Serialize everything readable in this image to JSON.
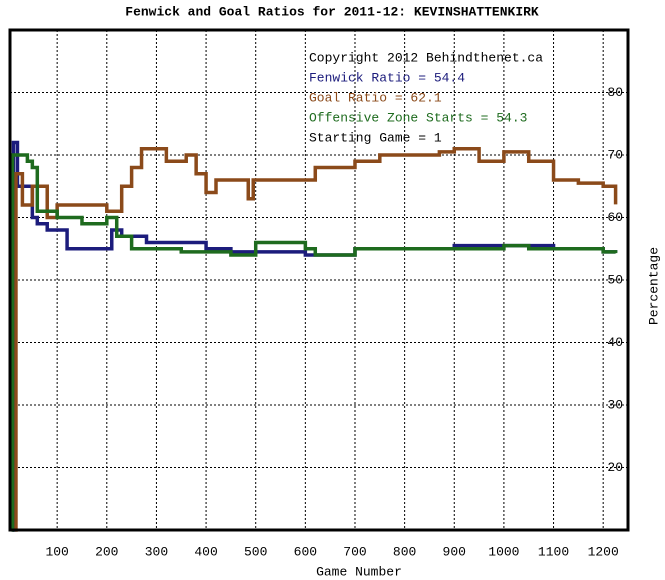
{
  "chart_data": {
    "type": "line",
    "title": "Fenwick and Goal Ratios for 2011-12: KEVINSHATTENKIRK",
    "xlabel": "Game Number",
    "ylabel": "Percentage",
    "annotations": [
      "Copyright 2012 Behindthenet.ca",
      "Starting Game = 1"
    ],
    "xlim": [
      5,
      1250
    ],
    "ylim": [
      10,
      90
    ],
    "xticks": [
      100,
      200,
      300,
      400,
      500,
      600,
      700,
      800,
      900,
      1000,
      1100,
      1200
    ],
    "yticks": [
      20,
      30,
      40,
      50,
      60,
      70,
      80
    ],
    "grid": true,
    "step": "post",
    "series": [
      {
        "name": "Fenwick Ratio = 54.4",
        "color": "#1c1c7c",
        "x": [
          10,
          12,
          20,
          50,
          60,
          80,
          120,
          210,
          230,
          280,
          400,
          450,
          550,
          600,
          700,
          900,
          1100,
          1200,
          1225
        ],
        "values": [
          10,
          72,
          65,
          60,
          59,
          58,
          55,
          58,
          57,
          56,
          55,
          54.5,
          54.5,
          54,
          55,
          55.5,
          55,
          54.5,
          54.4
        ]
      },
      {
        "name": "Goal Ratio = 62.1",
        "color": "#8b4a1a",
        "x": [
          15,
          17,
          30,
          50,
          80,
          100,
          200,
          230,
          250,
          270,
          320,
          360,
          380,
          400,
          420,
          485,
          495,
          600,
          620,
          700,
          750,
          870,
          900,
          950,
          1000,
          1050,
          1100,
          1150,
          1200,
          1225
        ],
        "values": [
          10,
          67,
          62,
          65,
          60,
          62,
          61,
          65,
          68,
          71,
          69,
          70,
          67,
          64,
          66,
          63,
          66,
          66,
          68,
          69,
          70,
          70.5,
          71,
          69,
          70.5,
          69,
          66,
          65.5,
          65,
          62.1
        ]
      },
      {
        "name": "Offensive Zone Starts = 54.3",
        "color": "#1e6b1e",
        "x": [
          8,
          10,
          40,
          50,
          60,
          100,
          150,
          200,
          220,
          250,
          350,
          450,
          500,
          600,
          620,
          700,
          1000,
          1050,
          1200,
          1225
        ],
        "values": [
          10,
          70,
          69,
          68,
          61,
          60,
          59,
          60,
          57,
          55,
          54.5,
          54,
          56,
          55,
          54,
          55,
          55.5,
          55,
          54.5,
          54.3
        ]
      }
    ]
  }
}
